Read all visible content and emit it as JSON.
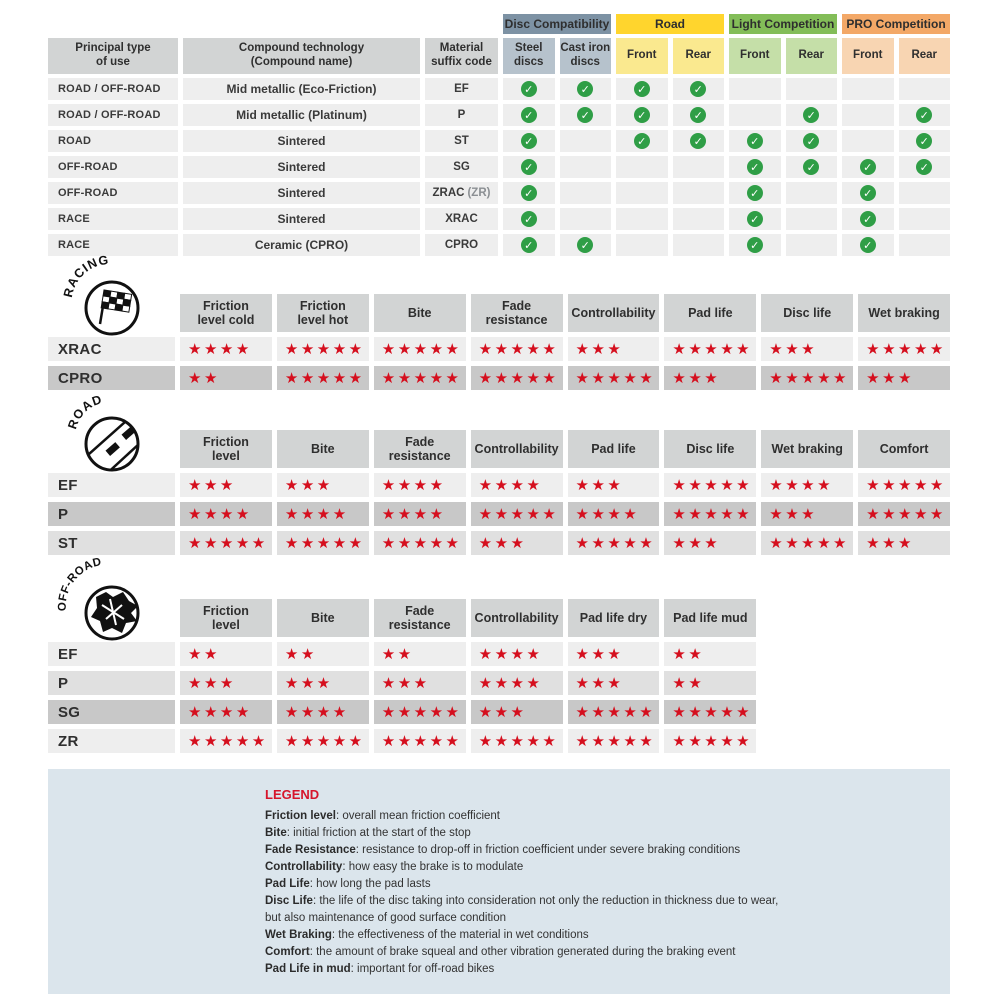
{
  "colors": {
    "star_red": "#d50f1e",
    "check_green": "#2f9e46",
    "header_gray": "#d2d4d4",
    "row_light": "#eeeeee",
    "row_medium": "#e0e0e0",
    "row_dark": "#c8c8c8",
    "legend_bg": "#dbe5ec",
    "legend_title_red": "#d6152b",
    "slate_bar": "#7d92a4",
    "slate_cell": "#b6c2cc",
    "yellow_bar": "#ffd52d",
    "yellow_cell": "#fae98f",
    "green_bar": "#83bd58",
    "green_cell": "#c5dfa8",
    "orange_bar": "#f3a867",
    "orange_cell": "#f8d5b2"
  },
  "compat": {
    "col_headers": [
      "Principal type\nof use",
      "Compound technology\n(Compound name)",
      "Material\nsuffix code"
    ],
    "groups": [
      {
        "label": "Disc Compatibility",
        "bar": "#7d92a4",
        "cell": "#b6c2cc",
        "sub": [
          "Steel\ndiscs",
          "Cast iron\ndiscs"
        ]
      },
      {
        "label": "Road",
        "bar": "#ffd52d",
        "cell": "#fae98f",
        "sub": [
          "Front",
          "Rear"
        ]
      },
      {
        "label": "Light Competition",
        "bar": "#83bd58",
        "cell": "#c5dfa8",
        "sub": [
          "Front",
          "Rear"
        ]
      },
      {
        "label": "PRO Competition",
        "bar": "#f3a867",
        "cell": "#f8d5b2",
        "sub": [
          "Front",
          "Rear"
        ]
      }
    ],
    "rows": [
      {
        "use": "ROAD / OFF-ROAD",
        "compound": "Mid metallic (Eco-Friction)",
        "code": "EF",
        "code_note": "",
        "checks": [
          1,
          1,
          1,
          1,
          0,
          0,
          0,
          0
        ]
      },
      {
        "use": "ROAD / OFF-ROAD",
        "compound": "Mid metallic (Platinum)",
        "code": "P",
        "code_note": "",
        "checks": [
          1,
          1,
          1,
          1,
          0,
          1,
          0,
          1
        ]
      },
      {
        "use": "ROAD",
        "compound": "Sintered",
        "code": "ST",
        "code_note": "",
        "checks": [
          1,
          0,
          1,
          1,
          1,
          1,
          0,
          1
        ]
      },
      {
        "use": "OFF-ROAD",
        "compound": "Sintered",
        "code": "SG",
        "code_note": "",
        "checks": [
          1,
          0,
          0,
          0,
          1,
          1,
          1,
          1
        ]
      },
      {
        "use": "OFF-ROAD",
        "compound": "Sintered",
        "code": "ZRAC",
        "code_note": "(ZR)",
        "checks": [
          1,
          0,
          0,
          0,
          1,
          0,
          1,
          0
        ]
      },
      {
        "use": "RACE",
        "compound": "Sintered",
        "code": "XRAC",
        "code_note": "",
        "checks": [
          1,
          0,
          0,
          0,
          1,
          0,
          1,
          0
        ]
      },
      {
        "use": "RACE",
        "compound": "Ceramic (CPRO)",
        "code": "CPRO",
        "code_note": "",
        "checks": [
          1,
          1,
          0,
          0,
          1,
          0,
          1,
          0
        ]
      }
    ]
  },
  "ratings": [
    {
      "id": "racing",
      "arc": "RACING",
      "columns": [
        "Friction\nlevel cold",
        "Friction\nlevel hot",
        "Bite",
        "Fade\nresistance",
        "Controllability",
        "Pad life",
        "Disc life",
        "Wet braking"
      ],
      "rows": [
        {
          "label": "XRAC",
          "shade": "light",
          "stars": [
            4,
            5,
            5,
            5,
            3,
            5,
            3,
            5
          ]
        },
        {
          "label": "CPRO",
          "shade": "dark",
          "stars": [
            2,
            5,
            5,
            5,
            5,
            3,
            5,
            3
          ]
        }
      ]
    },
    {
      "id": "road",
      "arc": "ROAD",
      "columns": [
        "Friction\nlevel",
        "Bite",
        "Fade\nresistance",
        "Controllability",
        "Pad life",
        "Disc life",
        "Wet braking",
        "Comfort"
      ],
      "rows": [
        {
          "label": "EF",
          "shade": "light",
          "stars": [
            3,
            3,
            4,
            4,
            3,
            5,
            4,
            5
          ]
        },
        {
          "label": "P",
          "shade": "dark",
          "stars": [
            4,
            4,
            4,
            5,
            4,
            5,
            3,
            5
          ]
        },
        {
          "label": "ST",
          "shade": "medium",
          "stars": [
            5,
            5,
            5,
            3,
            5,
            3,
            5,
            3
          ]
        }
      ]
    },
    {
      "id": "offroad",
      "arc": "OFF-ROAD",
      "columns": [
        "Friction\nlevel",
        "Bite",
        "Fade\nresistance",
        "Controllability",
        "Pad life dry",
        "Pad life mud"
      ],
      "rows": [
        {
          "label": "EF",
          "shade": "light",
          "stars": [
            2,
            2,
            2,
            4,
            3,
            2
          ]
        },
        {
          "label": "P",
          "shade": "medium",
          "stars": [
            3,
            3,
            3,
            4,
            3,
            2
          ]
        },
        {
          "label": "SG",
          "shade": "dark",
          "stars": [
            4,
            4,
            5,
            3,
            5,
            5
          ]
        },
        {
          "label": "ZR",
          "shade": "light",
          "stars": [
            5,
            5,
            5,
            5,
            5,
            5
          ]
        }
      ]
    }
  ],
  "legend": {
    "title": "LEGEND",
    "entries": [
      {
        "term": "Friction level",
        "text": ": overall mean friction coefficient"
      },
      {
        "term": "Bite",
        "text": ": initial friction at the start of the stop"
      },
      {
        "term": "Fade Resistance",
        "text": ": resistance to drop-off in friction coefficient under severe braking conditions"
      },
      {
        "term": "Controllability",
        "text": ": how easy the brake is to modulate"
      },
      {
        "term": "Pad Life",
        "text": ": how long the pad lasts"
      },
      {
        "term": "Disc Life",
        "text": ": the life of the disc taking into consideration not only the reduction in thickness due to wear,"
      },
      {
        "term": "",
        "text": "but also maintenance of good surface condition"
      },
      {
        "term": "Wet Braking",
        "text": ": the effectiveness of the material in wet conditions"
      },
      {
        "term": "Comfort",
        "text": ": the amount of brake squeal and other vibration generated during the braking event"
      },
      {
        "term": "Pad Life in mud",
        "text": ": important for off-road bikes"
      }
    ]
  },
  "chart_data": [
    {
      "type": "table",
      "title": "Compound compatibility (Disc Compatibility / Road / Light Competition / PRO Competition)",
      "columns": [
        "Principal type of use",
        "Compound technology (Compound name)",
        "Material suffix code",
        "Steel discs",
        "Cast iron discs",
        "Road Front",
        "Road Rear",
        "Light Competition Front",
        "Light Competition Rear",
        "PRO Competition Front",
        "PRO Competition Rear"
      ],
      "rows": [
        [
          "ROAD / OFF-ROAD",
          "Mid metallic (Eco-Friction)",
          "EF",
          true,
          true,
          true,
          true,
          false,
          false,
          false,
          false
        ],
        [
          "ROAD / OFF-ROAD",
          "Mid metallic (Platinum)",
          "P",
          true,
          true,
          true,
          true,
          false,
          true,
          false,
          true
        ],
        [
          "ROAD",
          "Sintered",
          "ST",
          true,
          false,
          true,
          true,
          true,
          true,
          false,
          true
        ],
        [
          "OFF-ROAD",
          "Sintered",
          "SG",
          true,
          false,
          false,
          false,
          true,
          true,
          true,
          true
        ],
        [
          "OFF-ROAD",
          "Sintered",
          "ZRAC (ZR)",
          true,
          false,
          false,
          false,
          true,
          false,
          true,
          false
        ],
        [
          "RACE",
          "Sintered",
          "XRAC",
          true,
          false,
          false,
          false,
          true,
          false,
          true,
          false
        ],
        [
          "RACE",
          "Ceramic (CPRO)",
          "CPRO",
          true,
          true,
          false,
          false,
          true,
          false,
          true,
          false
        ]
      ]
    },
    {
      "type": "table",
      "title": "RACING ratings (stars out of 5)",
      "columns": [
        "Compound",
        "Friction level cold",
        "Friction level hot",
        "Bite",
        "Fade resistance",
        "Controllability",
        "Pad life",
        "Disc life",
        "Wet braking"
      ],
      "rows": [
        [
          "XRAC",
          4,
          5,
          5,
          5,
          3,
          5,
          3,
          5
        ],
        [
          "CPRO",
          2,
          5,
          5,
          5,
          5,
          3,
          5,
          3
        ]
      ]
    },
    {
      "type": "table",
      "title": "ROAD ratings (stars out of 5)",
      "columns": [
        "Compound",
        "Friction level",
        "Bite",
        "Fade resistance",
        "Controllability",
        "Pad life",
        "Disc life",
        "Wet braking",
        "Comfort"
      ],
      "rows": [
        [
          "EF",
          3,
          3,
          4,
          4,
          3,
          5,
          4,
          5
        ],
        [
          "P",
          4,
          4,
          4,
          5,
          4,
          5,
          3,
          5
        ],
        [
          "ST",
          5,
          5,
          5,
          3,
          5,
          3,
          5,
          3
        ]
      ]
    },
    {
      "type": "table",
      "title": "OFF-ROAD ratings (stars out of 5)",
      "columns": [
        "Compound",
        "Friction level",
        "Bite",
        "Fade resistance",
        "Controllability",
        "Pad life dry",
        "Pad life mud"
      ],
      "rows": [
        [
          "EF",
          2,
          2,
          2,
          4,
          3,
          2
        ],
        [
          "P",
          3,
          3,
          3,
          4,
          3,
          2
        ],
        [
          "SG",
          4,
          4,
          5,
          3,
          5,
          5
        ],
        [
          "ZR",
          5,
          5,
          5,
          5,
          5,
          5
        ]
      ]
    }
  ]
}
